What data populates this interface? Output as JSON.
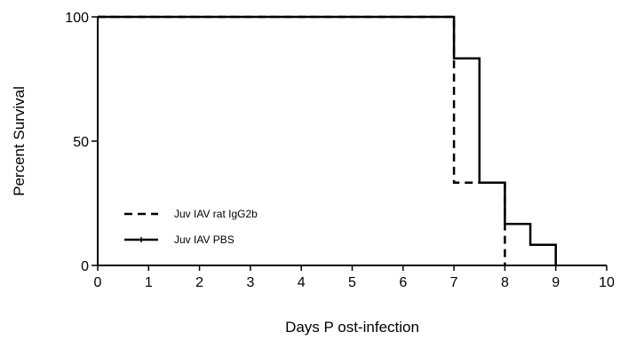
{
  "chart_data": {
    "type": "line",
    "step": true,
    "title": "",
    "xlabel": "Days P ost-infection",
    "ylabel": "Percent Survival",
    "xlim": [
      0,
      10
    ],
    "ylim": [
      0,
      100
    ],
    "xticks": [
      "0",
      "1",
      "2",
      "3",
      "4",
      "5",
      "6",
      "7",
      "8",
      "9",
      "10"
    ],
    "yticks": [
      "0",
      "50",
      "100"
    ],
    "grid": false,
    "legend_position": "bottom-left",
    "series": [
      {
        "name": "Juv IAV rat IgG2b",
        "style": "dashed",
        "color": "#000000",
        "x": [
          0,
          7,
          8
        ],
        "y": [
          100,
          33.3,
          0
        ]
      },
      {
        "name": "Juv IAV PBS",
        "style": "solid",
        "color": "#000000",
        "x": [
          0,
          7,
          7.5,
          8,
          8.5,
          9
        ],
        "y": [
          100,
          83.3,
          33.3,
          16.7,
          8.3,
          0
        ]
      }
    ]
  }
}
